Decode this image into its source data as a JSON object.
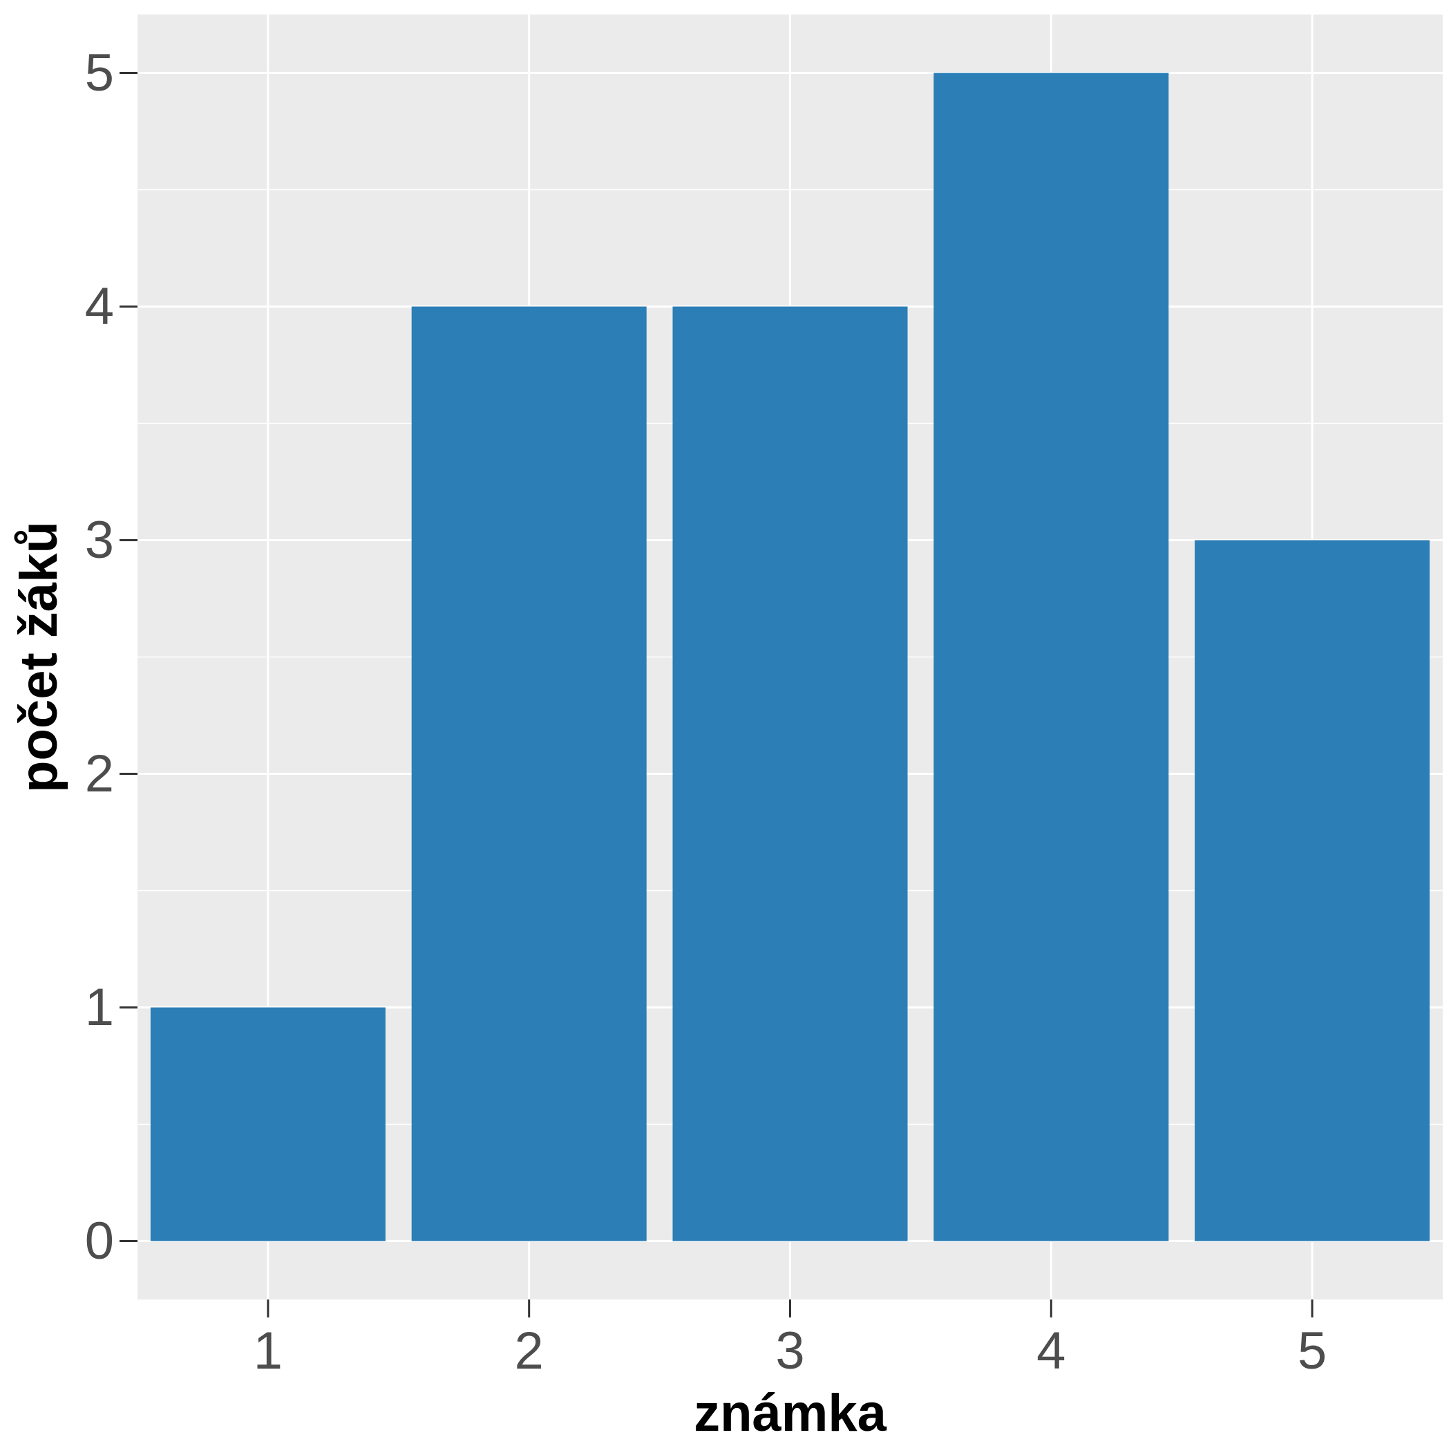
{
  "chart_data": {
    "type": "bar",
    "categories": [
      "1",
      "2",
      "3",
      "4",
      "5"
    ],
    "values": [
      1,
      4,
      4,
      5,
      3
    ],
    "title": "",
    "xlabel": "známka",
    "ylabel": "počet žáků",
    "ylim": [
      -0.25,
      5.25
    ],
    "yticks": [
      "0",
      "1",
      "2",
      "3",
      "4",
      "5"
    ],
    "grid": true,
    "legend": "none",
    "bar_color": "#2b7eb6",
    "panel_background": "#ebebeb",
    "grid_color": "#ffffff"
  }
}
